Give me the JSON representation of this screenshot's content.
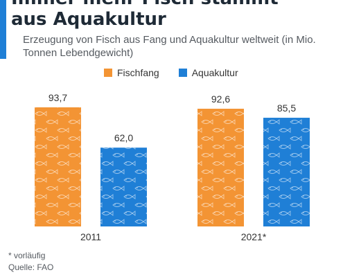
{
  "header": {
    "title_line1": "Immer mehr Fisch stammt",
    "title_line2": "aus Aquakultur",
    "subtitle": "Erzeugung von Fisch aus Fang und Aquakultur weltweit (in Mio. Tonnen Lebendgewicht)"
  },
  "colors": {
    "accent": "#1f7fd6",
    "fischfang": "#f39434",
    "aquakultur": "#1f7fd6",
    "fish_pattern": "#ffffff"
  },
  "chart_data": {
    "type": "bar",
    "title": "",
    "xlabel": "",
    "ylabel": "",
    "categories": [
      "2011",
      "2021*"
    ],
    "series": [
      {
        "name": "Fischfang",
        "values": [
          93.7,
          92.6
        ],
        "labels": [
          "93,7",
          "92,6"
        ]
      },
      {
        "name": "Aquakultur",
        "values": [
          62.0,
          85.5
        ],
        "labels": [
          "62,0",
          "85,5"
        ]
      }
    ],
    "ylim": [
      0,
      93.7
    ],
    "grid": false,
    "legend": "top-center"
  },
  "footer": {
    "note": "* vorläufig",
    "source": "Quelle: FAO"
  }
}
